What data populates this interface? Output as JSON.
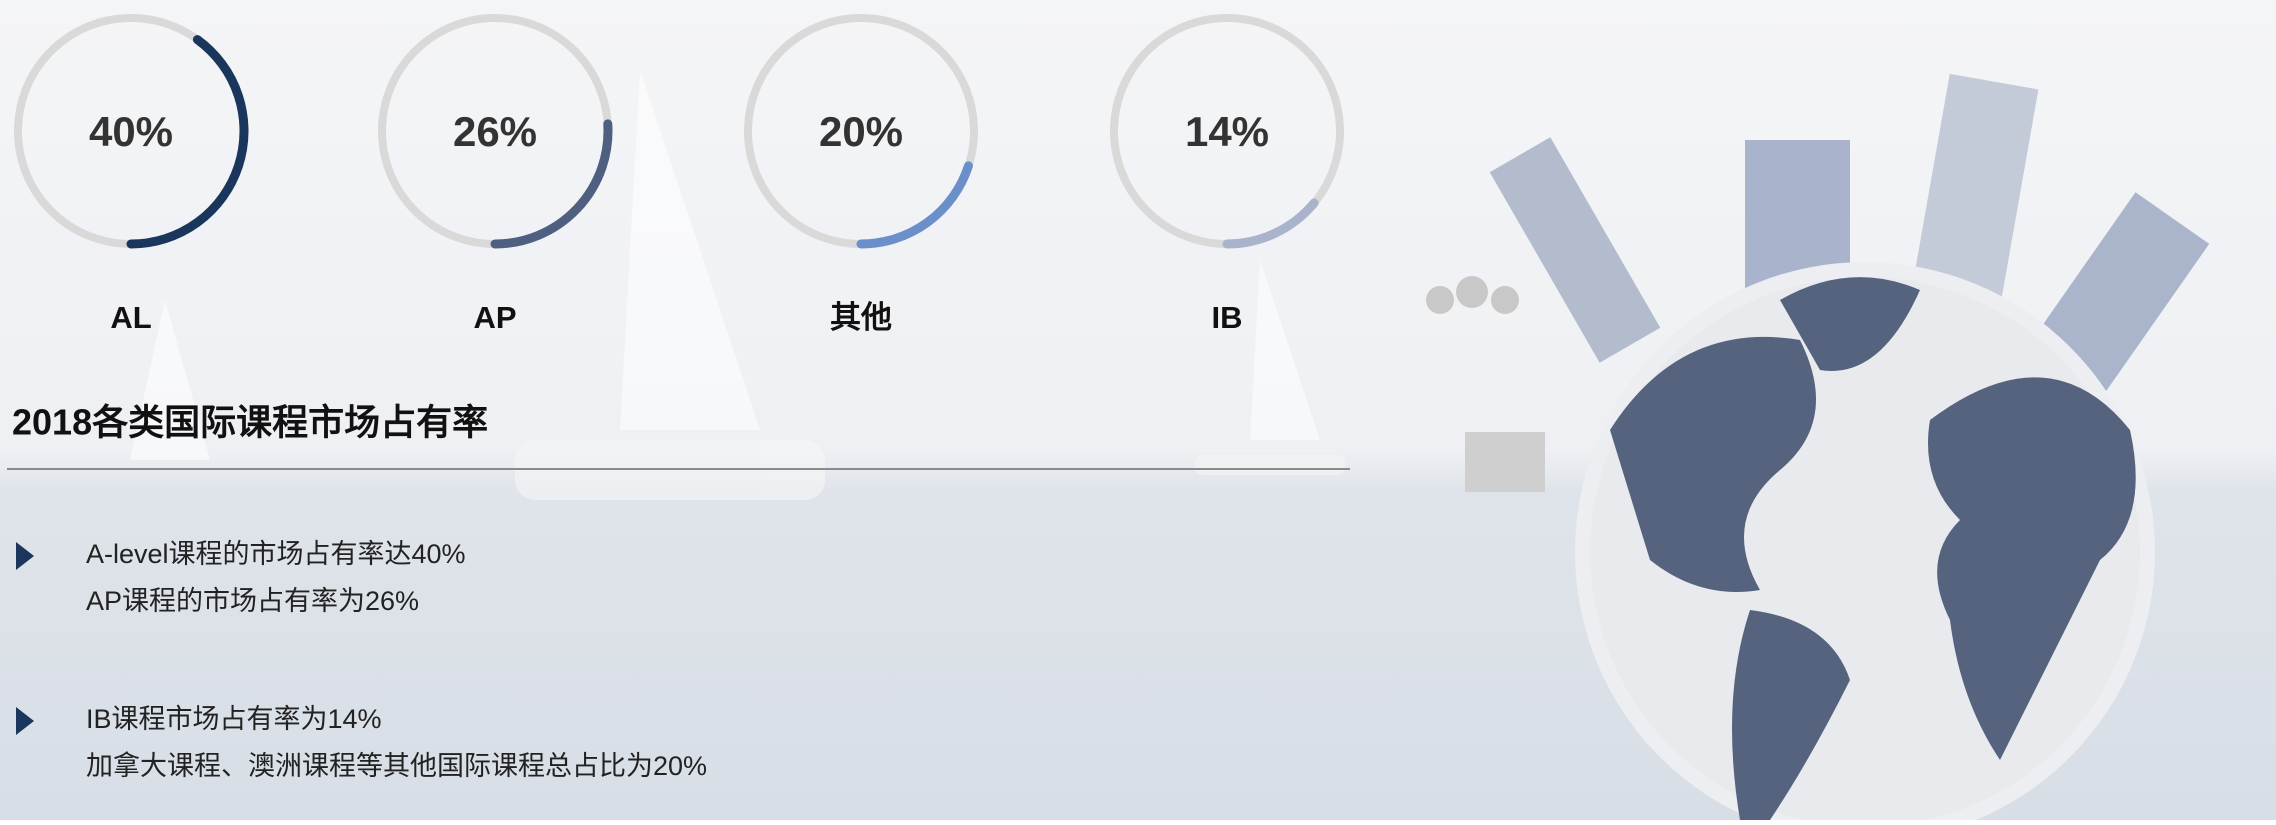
{
  "chart_data": [
    {
      "type": "donut",
      "categories": [
        "AL"
      ],
      "values": [
        40
      ],
      "value_labels": [
        "40%"
      ],
      "color": "#1b365d"
    },
    {
      "type": "donut",
      "categories": [
        "AP"
      ],
      "values": [
        26
      ],
      "value_labels": [
        "26%"
      ],
      "color": "#4f5f80"
    },
    {
      "type": "donut",
      "categories": [
        "其他"
      ],
      "values": [
        20
      ],
      "value_labels": [
        "20%"
      ],
      "color": "#6b8fc9"
    },
    {
      "type": "donut",
      "categories": [
        "IB"
      ],
      "values": [
        14
      ],
      "value_labels": [
        "14%"
      ],
      "color": "#a9b4cc"
    }
  ],
  "heading": "2018各类国际课程市场占有率",
  "bullets": [
    [
      "A-level课程的市场占有率达40%",
      "AP课程的市场占有率为26%"
    ],
    [
      "IB课程市场占有率为14%",
      "加拿大课程、澳洲课程等其他国际课程总占比为20%"
    ]
  ]
}
